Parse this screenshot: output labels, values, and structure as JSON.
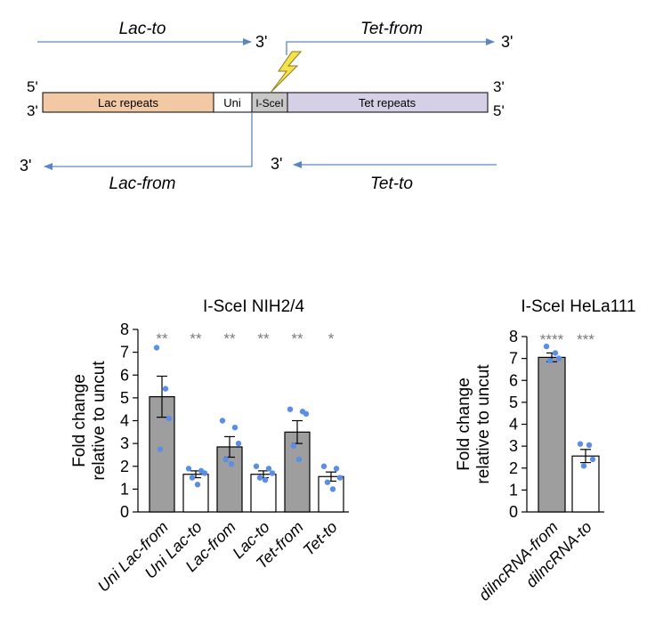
{
  "colors": {
    "arrow": "#5b86bf",
    "lac_repeats": "#f2c9a4",
    "uni": "#ffffff",
    "isce": "#c8c8c8",
    "tet_repeats": "#d6d0e6",
    "bolt": "#f6e24a",
    "bar_gray": "#9e9e9e",
    "bar_white": "#ffffff",
    "dot": "#5b8ee6",
    "star": "#7a7a7a"
  },
  "schematic": {
    "top_left_label": "Lac-to",
    "top_left_end": "3'",
    "top_right_label": "Tet-from",
    "top_right_end": "3'",
    "bottom_left_label": "Lac-from",
    "bottom_left_end": "3'",
    "bottom_right_label": "Tet-to",
    "bottom_right_end": "3'",
    "strand_left_top": "5'",
    "strand_left_bottom": "3'",
    "strand_right_top": "3'",
    "strand_right_bottom": "5'",
    "segments": {
      "lac": "Lac repeats",
      "uni": "Uni",
      "isce": "I-SceI",
      "tet": "Tet repeats"
    }
  },
  "chart_data": [
    {
      "type": "bar",
      "title": "I-SceI NIH2/4",
      "ylabel": [
        "Fold change",
        "relative to uncut"
      ],
      "ylim": [
        0,
        8
      ],
      "yticks": [
        "0",
        "1",
        "2",
        "3",
        "4",
        "5",
        "6",
        "7",
        "8"
      ],
      "categories": [
        "Uni Lac-from",
        "Uni Lac-to",
        "Lac-from",
        "Lac-to",
        "Tet-from",
        "Tet-to"
      ],
      "values": [
        5.05,
        1.65,
        2.85,
        1.65,
        3.5,
        1.55
      ],
      "errors": [
        0.9,
        0.15,
        0.45,
        0.15,
        0.5,
        0.2
      ],
      "fill": [
        "gray",
        "white",
        "gray",
        "white",
        "gray",
        "white"
      ],
      "points": [
        [
          7.2,
          5.4,
          4.1,
          2.75
        ],
        [
          1.9,
          1.8,
          1.7,
          1.5,
          1.2
        ],
        [
          4.0,
          3.7,
          3.0,
          2.3,
          2.1
        ],
        [
          2.0,
          1.9,
          1.7,
          1.5,
          1.4
        ],
        [
          4.5,
          4.4,
          4.3,
          2.9,
          2.3
        ],
        [
          2.0,
          1.9,
          1.5,
          1.3,
          1.0
        ]
      ],
      "significance": [
        "**",
        "**",
        "**",
        "**",
        "**",
        "*"
      ]
    },
    {
      "type": "bar",
      "title": "I-SceI HeLa111",
      "ylabel": [
        "Fold change",
        "relative to uncut"
      ],
      "ylim": [
        0,
        8
      ],
      "yticks": [
        "0",
        "1",
        "2",
        "3",
        "4",
        "5",
        "6",
        "7",
        "8"
      ],
      "categories": [
        "dilncRNA-from",
        "dilncRNA-to"
      ],
      "values": [
        7.05,
        2.55
      ],
      "errors": [
        0.2,
        0.3
      ],
      "fill": [
        "gray",
        "white"
      ],
      "points": [
        [
          7.55,
          7.25,
          7.0,
          6.9
        ],
        [
          3.1,
          3.05,
          2.4,
          2.1
        ]
      ],
      "significance": [
        "****",
        "***"
      ]
    }
  ]
}
